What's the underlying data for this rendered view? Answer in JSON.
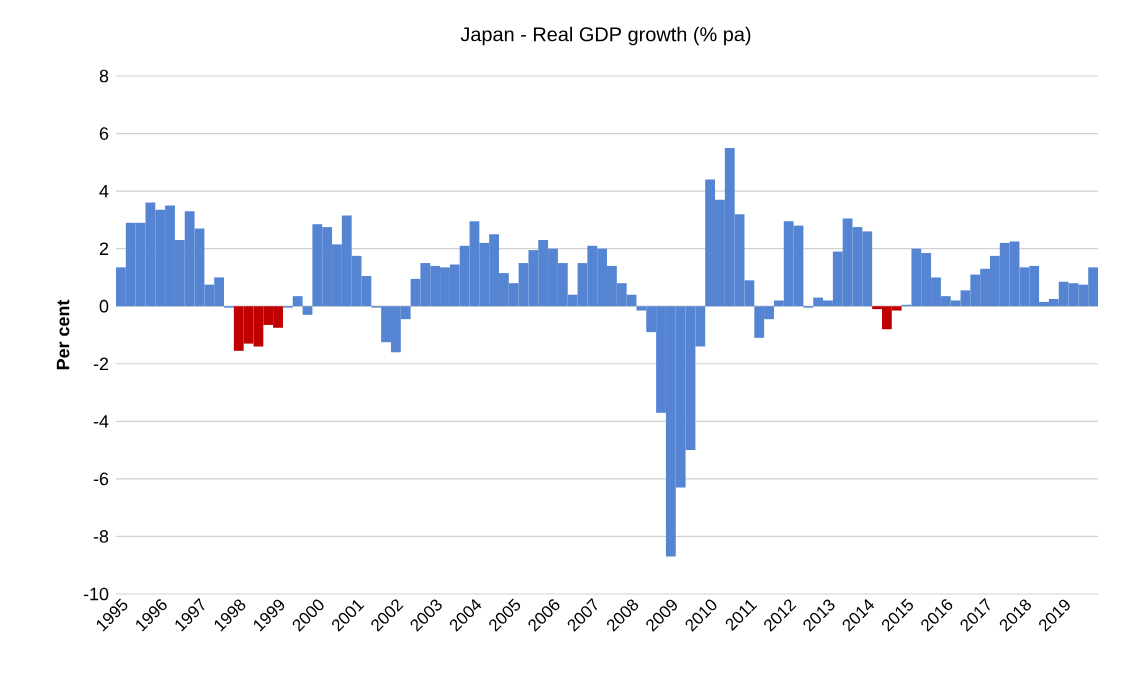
{
  "chart_data": {
    "type": "bar",
    "title": "Japan - Real GDP growth (% pa)",
    "ylabel": "Per cent",
    "categories": [
      "1995",
      null,
      null,
      null,
      "1996",
      null,
      null,
      null,
      "1997",
      null,
      null,
      null,
      "1998",
      null,
      null,
      null,
      "1999",
      null,
      null,
      null,
      "2000",
      null,
      null,
      null,
      "2001",
      null,
      null,
      null,
      "2002",
      null,
      null,
      null,
      "2003",
      null,
      null,
      null,
      "2004",
      null,
      null,
      null,
      "2005",
      null,
      null,
      null,
      "2006",
      null,
      null,
      null,
      "2007",
      null,
      null,
      null,
      "2008",
      null,
      null,
      null,
      "2009",
      null,
      null,
      null,
      "2010",
      null,
      null,
      null,
      "2011",
      null,
      null,
      null,
      "2012",
      null,
      null,
      null,
      "2013",
      null,
      null,
      null,
      "2014",
      null,
      null,
      null,
      "2015",
      null,
      null,
      null,
      "2016",
      null,
      null,
      null,
      "2017",
      null,
      null,
      null,
      "2018",
      null,
      null,
      null,
      "2019",
      null,
      null,
      null
    ],
    "values": [
      1.35,
      2.9,
      2.9,
      3.6,
      3.35,
      3.5,
      2.3,
      3.3,
      2.7,
      0.75,
      1.0,
      -0.05,
      -1.55,
      -1.3,
      -1.4,
      -0.65,
      -0.75,
      -0.05,
      0.35,
      -0.3,
      2.85,
      2.75,
      2.15,
      3.15,
      1.75,
      1.05,
      -0.05,
      -1.25,
      -1.6,
      -0.45,
      0.95,
      1.5,
      1.4,
      1.35,
      1.45,
      2.1,
      2.95,
      2.2,
      2.5,
      1.15,
      0.8,
      1.5,
      1.95,
      2.3,
      2.0,
      1.5,
      0.4,
      1.5,
      2.1,
      2.0,
      1.4,
      0.8,
      0.4,
      -0.15,
      -0.9,
      -3.7,
      -8.7,
      -6.3,
      -5.0,
      -1.4,
      4.4,
      3.7,
      5.5,
      3.2,
      0.9,
      -1.1,
      -0.45,
      0.2,
      2.95,
      2.8,
      -0.05,
      0.3,
      0.2,
      1.9,
      3.05,
      2.75,
      2.6,
      -0.1,
      -0.8,
      -0.15,
      0.05,
      2.0,
      1.85,
      1.0,
      0.35,
      0.2,
      0.55,
      1.1,
      1.3,
      1.75,
      2.2,
      2.25,
      1.35,
      1.4,
      0.15,
      0.25,
      0.85,
      0.8,
      0.75,
      1.35
    ],
    "colors": [
      "#5585d2",
      "#5585d2",
      "#5585d2",
      "#5585d2",
      "#5585d2",
      "#5585d2",
      "#5585d2",
      "#5585d2",
      "#5585d2",
      "#5585d2",
      "#5585d2",
      "#5585d2",
      "#c00000",
      "#c00000",
      "#c00000",
      "#c00000",
      "#c00000",
      "#5585d2",
      "#5585d2",
      "#5585d2",
      "#5585d2",
      "#5585d2",
      "#5585d2",
      "#5585d2",
      "#5585d2",
      "#5585d2",
      "#5585d2",
      "#5585d2",
      "#5585d2",
      "#5585d2",
      "#5585d2",
      "#5585d2",
      "#5585d2",
      "#5585d2",
      "#5585d2",
      "#5585d2",
      "#5585d2",
      "#5585d2",
      "#5585d2",
      "#5585d2",
      "#5585d2",
      "#5585d2",
      "#5585d2",
      "#5585d2",
      "#5585d2",
      "#5585d2",
      "#5585d2",
      "#5585d2",
      "#5585d2",
      "#5585d2",
      "#5585d2",
      "#5585d2",
      "#5585d2",
      "#5585d2",
      "#5585d2",
      "#5585d2",
      "#5585d2",
      "#5585d2",
      "#5585d2",
      "#5585d2",
      "#5585d2",
      "#5585d2",
      "#5585d2",
      "#5585d2",
      "#5585d2",
      "#5585d2",
      "#5585d2",
      "#5585d2",
      "#5585d2",
      "#5585d2",
      "#5585d2",
      "#5585d2",
      "#5585d2",
      "#5585d2",
      "#5585d2",
      "#5585d2",
      "#5585d2",
      "#c00000",
      "#c00000",
      "#c00000",
      "#5585d2",
      "#5585d2",
      "#5585d2",
      "#5585d2",
      "#5585d2",
      "#5585d2",
      "#5585d2",
      "#5585d2",
      "#5585d2",
      "#5585d2",
      "#5585d2",
      "#5585d2",
      "#5585d2",
      "#5585d2",
      "#5585d2",
      "#5585d2",
      "#5585d2",
      "#5585d2",
      "#5585d2",
      "#5585d2"
    ],
    "ylim": [
      -10,
      8
    ],
    "yticks": [
      -10,
      -8,
      -6,
      -4,
      -2,
      0,
      2,
      4,
      6,
      8
    ],
    "grid": "y"
  }
}
